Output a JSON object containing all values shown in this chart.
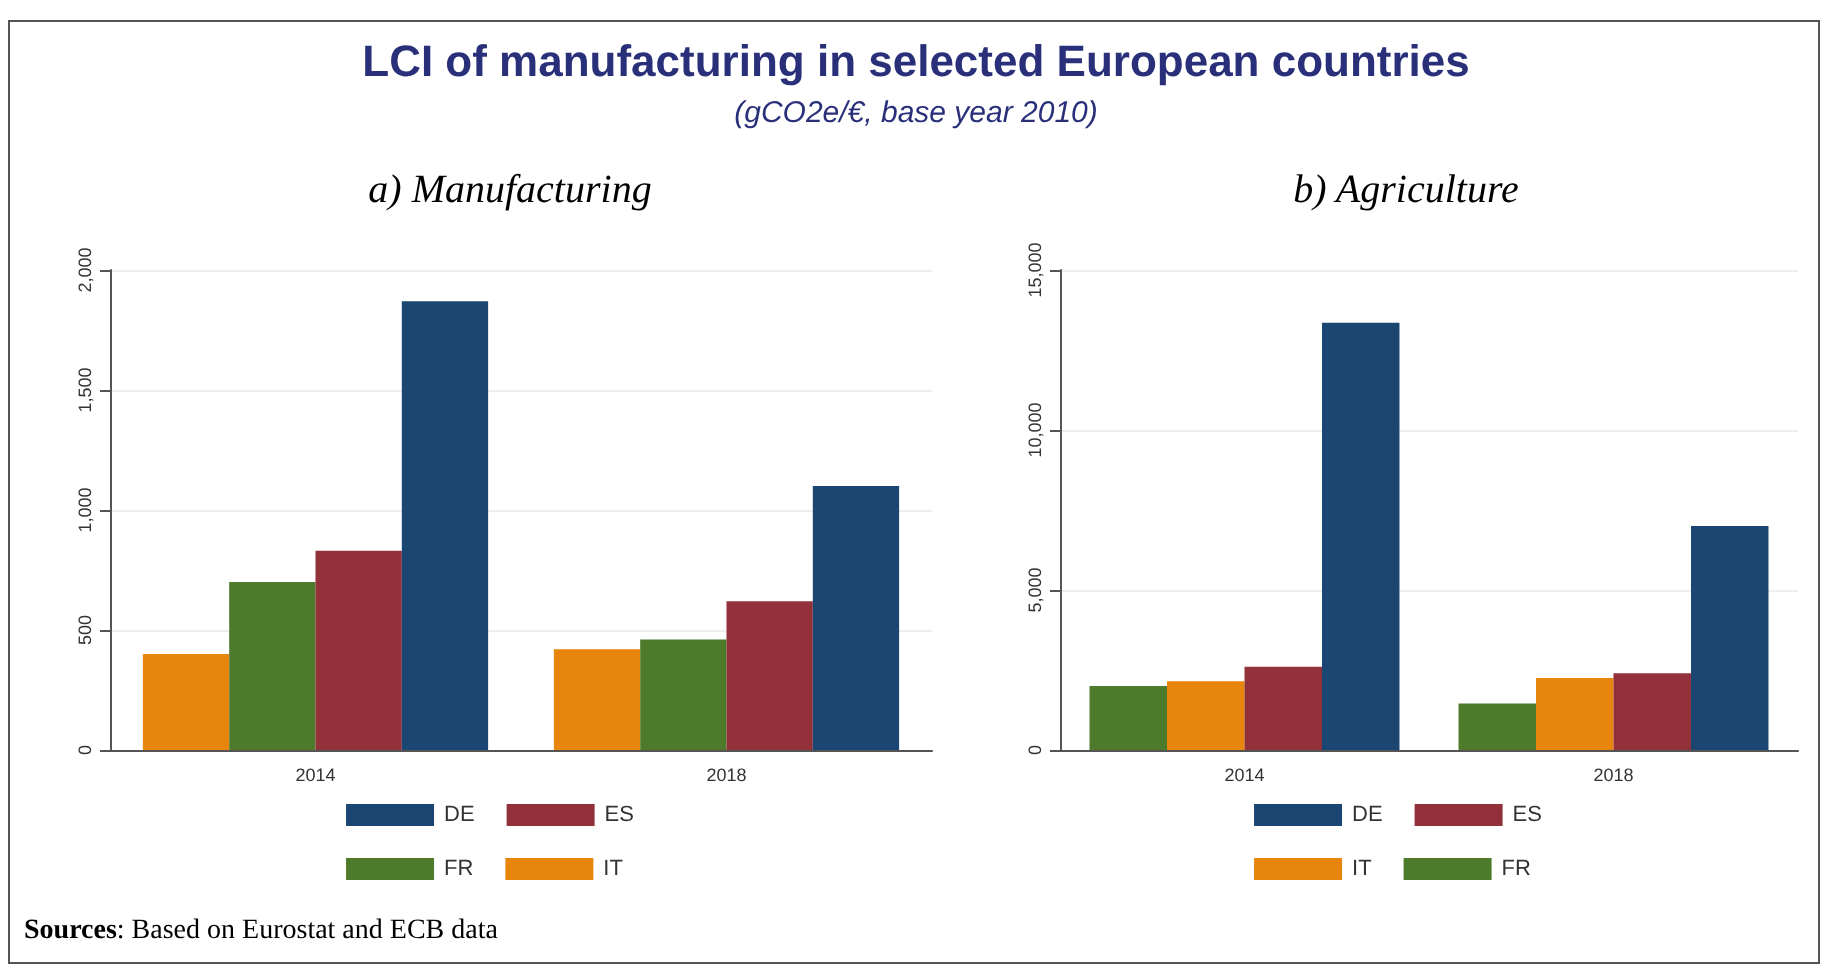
{
  "chart_data": [
    {
      "type": "bar",
      "title": "a)  Manufacturing",
      "categories": [
        "2014",
        "2018"
      ],
      "series": [
        {
          "name": "IT",
          "color": "#e8850c",
          "values": [
            400,
            420
          ]
        },
        {
          "name": "FR",
          "color": "#4e7a2c",
          "values": [
            700,
            460
          ]
        },
        {
          "name": "ES",
          "color": "#923139",
          "values": [
            830,
            620
          ]
        },
        {
          "name": "DE",
          "color": "#1b4672",
          "values": [
            1870,
            1100
          ]
        }
      ],
      "ylim": [
        0,
        2000
      ],
      "yticks": [
        0,
        {
          "value": 500,
          "label": "500"
        },
        {
          "value": 1000,
          "label": "1,000"
        },
        {
          "value": 1500,
          "label": "1,500"
        },
        {
          "value": 2000,
          "label": "2,000"
        }
      ],
      "grid": "y",
      "legend": "bottom",
      "annotations": [
        "LCI of manufacturing in selected European countries",
        "(gCO2e/€, base year 2010)",
        "Sources: Based on Eurostat and ECB data"
      ]
    },
    {
      "type": "bar",
      "title": "b)  Agriculture",
      "categories": [
        "2014",
        "2018"
      ],
      "series": [
        {
          "name": "FR",
          "color": "#4e7a2c",
          "values": [
            2000,
            1450
          ]
        },
        {
          "name": "IT",
          "color": "#e8850c",
          "values": [
            2150,
            2250
          ]
        },
        {
          "name": "ES",
          "color": "#923139",
          "values": [
            2600,
            2400
          ]
        },
        {
          "name": "DE",
          "color": "#1b4672",
          "values": [
            13350,
            7000
          ]
        }
      ],
      "ylim": [
        0,
        15000
      ],
      "yticks": [
        0,
        {
          "value": 5000,
          "label": "5,000"
        },
        {
          "value": 10000,
          "label": "10,000"
        },
        {
          "value": 15000,
          "label": "15,000"
        }
      ],
      "grid": "y",
      "legend": "bottom"
    }
  ]
}
